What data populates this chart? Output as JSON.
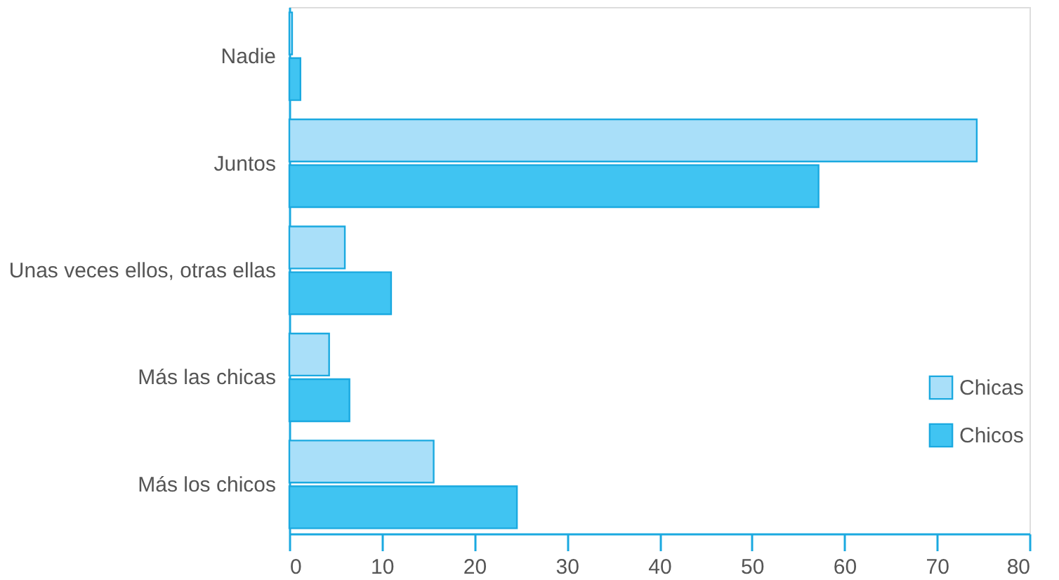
{
  "chart_data": {
    "type": "bar",
    "orientation": "horizontal",
    "categories": [
      "Nadie",
      "Juntos",
      "Unas veces ellos, otras ellas",
      "Más las chicas",
      "Más los chicos"
    ],
    "series": [
      {
        "name": "Chicas",
        "color": "#a9dff9",
        "values": [
          0.3,
          74.3,
          6.0,
          4.3,
          15.6
        ]
      },
      {
        "name": "Chicos",
        "color": "#40c4f2",
        "values": [
          1.2,
          57.2,
          11.0,
          6.5,
          24.6
        ]
      }
    ],
    "xlim": [
      0,
      80
    ],
    "xticks": [
      0,
      10,
      20,
      30,
      40,
      50,
      60,
      70,
      80
    ],
    "grid": false,
    "legend": "bottom right"
  }
}
